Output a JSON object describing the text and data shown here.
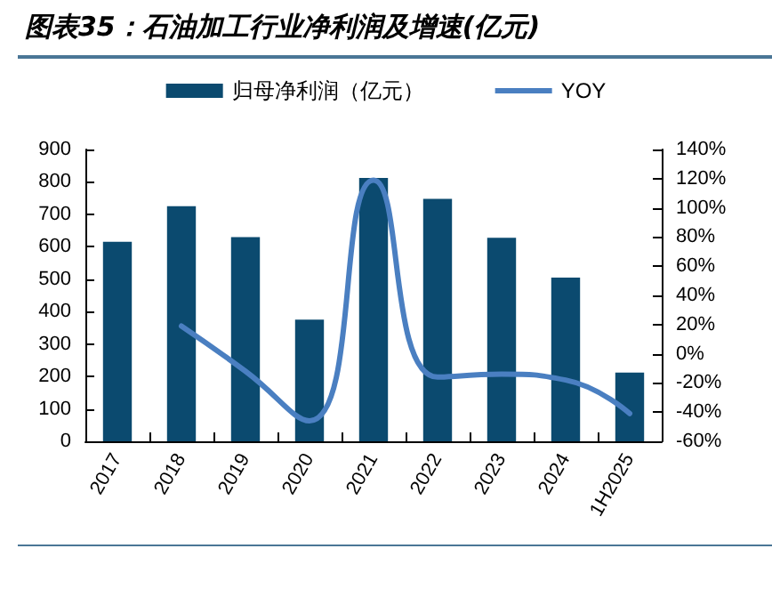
{
  "chart_data": {
    "type": "bar",
    "title": "图表35：石油加工行业净利润及增速(亿元)",
    "categories": [
      "2017",
      "2018",
      "2019",
      "2020",
      "2021",
      "2022",
      "2023",
      "2024",
      "1H2025"
    ],
    "series": [
      {
        "name": "归母净利润（亿元）",
        "color": "#0b4a6f",
        "values": [
          615,
          725,
          630,
          375,
          812,
          748,
          628,
          505,
          212
        ]
      },
      {
        "name": "YOY",
        "type": "line",
        "axis": "y2",
        "color": "#4a7fc1",
        "values": [
          null,
          19,
          -12,
          -46,
          119,
          -16,
          -14,
          -18,
          -41
        ]
      }
    ],
    "ylim": [
      0,
      900
    ],
    "yticks": [
      0,
      100,
      200,
      300,
      400,
      500,
      600,
      700,
      800,
      900
    ],
    "y2lim": [
      -60,
      140
    ],
    "y2ticks": [
      {
        "value": -60,
        "label": "-60%"
      },
      {
        "value": -40,
        "label": "-40%"
      },
      {
        "value": -20,
        "label": "-20%"
      },
      {
        "value": 0,
        "label": "0%"
      },
      {
        "value": 20,
        "label": "20%"
      },
      {
        "value": 40,
        "label": "40%"
      },
      {
        "value": 60,
        "label": "60%"
      },
      {
        "value": 80,
        "label": "80%"
      },
      {
        "value": 100,
        "label": "100%"
      },
      {
        "value": 120,
        "label": "120%"
      },
      {
        "value": 140,
        "label": "140%"
      }
    ],
    "legend": "top",
    "grid": false,
    "marker": "none"
  }
}
